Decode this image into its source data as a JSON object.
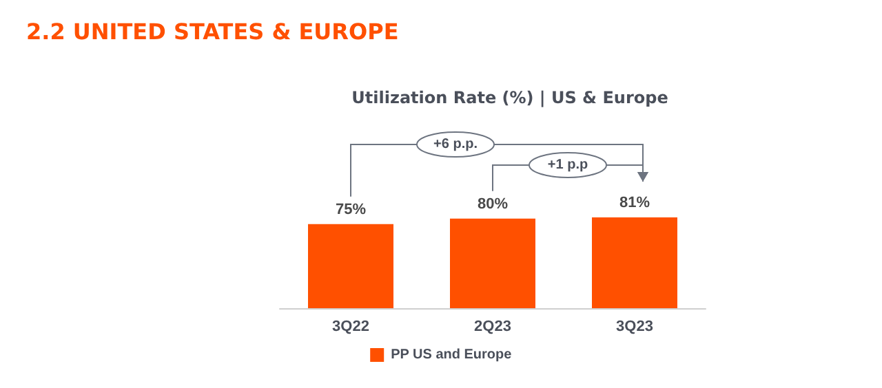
{
  "chart_data": {
    "type": "bar",
    "title": "2.2 UNITED STATES & EUROPE",
    "subtitle": "Utilization Rate (%) | US & Europe",
    "categories": [
      "3Q22",
      "2Q23",
      "3Q23"
    ],
    "series": [
      {
        "name": "PP US and Europe",
        "color": "#ff5000",
        "values": [
          75,
          80,
          81
        ],
        "value_labels": [
          "75%",
          "80%",
          "81%"
        ]
      }
    ],
    "annotations": [
      "+6 p.p.",
      "+1 p.p"
    ],
    "legend": "bottom",
    "grid": false
  }
}
